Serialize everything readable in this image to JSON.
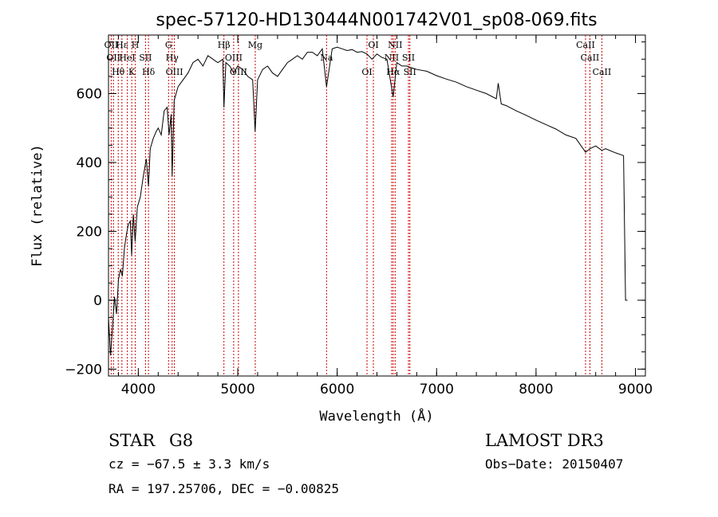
{
  "chart_data": {
    "type": "line",
    "title": "spec-57120-HD130444N001742V01_sp08-069.fits",
    "xlabel": "Wavelength (Å)",
    "ylabel": "Flux (relative)",
    "xlim": [
      3700,
      9100
    ],
    "ylim": [
      -220,
      770
    ],
    "x_ticks": [
      4000,
      5000,
      6000,
      7000,
      8000,
      9000
    ],
    "y_ticks": [
      -200,
      0,
      200,
      400,
      600
    ],
    "x_tick_labels": [
      "4000",
      "5000",
      "6000",
      "7000",
      "8000",
      "9000"
    ],
    "y_tick_labels": [
      "−200",
      "0",
      "200",
      "400",
      "600"
    ],
    "grid": false,
    "spectrum_color": "#000000",
    "line_marker_color": "#cc0000",
    "spectrum": {
      "x": [
        3700,
        3720,
        3740,
        3760,
        3780,
        3800,
        3820,
        3840,
        3860,
        3880,
        3900,
        3920,
        3933,
        3950,
        3968,
        3990,
        4020,
        4050,
        4080,
        4102,
        4120,
        4150,
        4180,
        4200,
        4230,
        4260,
        4290,
        4310,
        4330,
        4340,
        4360,
        4400,
        4450,
        4500,
        4550,
        4600,
        4650,
        4700,
        4750,
        4800,
        4850,
        4861,
        4880,
        4920,
        4960,
        5000,
        5050,
        5100,
        5150,
        5175,
        5200,
        5250,
        5300,
        5350,
        5400,
        5450,
        5500,
        5550,
        5600,
        5650,
        5700,
        5750,
        5800,
        5850,
        5893,
        5950,
        6000,
        6050,
        6100,
        6150,
        6200,
        6250,
        6300,
        6350,
        6400,
        6450,
        6500,
        6563,
        6600,
        6650,
        6700,
        6750,
        6800,
        6900,
        7000,
        7100,
        7200,
        7300,
        7400,
        7500,
        7600,
        7620,
        7650,
        7700,
        7800,
        7900,
        8000,
        8100,
        8200,
        8300,
        8400,
        8498,
        8542,
        8600,
        8662,
        8700,
        8800,
        8880,
        8900,
        8920
      ],
      "y": [
        -50,
        -160,
        -80,
        10,
        -40,
        60,
        90,
        70,
        150,
        190,
        220,
        230,
        130,
        250,
        170,
        270,
        300,
        360,
        410,
        330,
        440,
        470,
        490,
        500,
        480,
        550,
        560,
        480,
        540,
        360,
        580,
        620,
        640,
        660,
        690,
        700,
        680,
        710,
        700,
        690,
        700,
        560,
        690,
        680,
        660,
        680,
        670,
        650,
        640,
        490,
        640,
        670,
        680,
        660,
        650,
        670,
        690,
        700,
        710,
        700,
        720,
        720,
        710,
        730,
        620,
        730,
        735,
        730,
        725,
        728,
        720,
        722,
        715,
        700,
        715,
        705,
        700,
        590,
        690,
        680,
        680,
        675,
        670,
        665,
        652,
        642,
        633,
        620,
        610,
        600,
        585,
        630,
        570,
        565,
        550,
        537,
        523,
        510,
        497,
        480,
        470,
        430,
        440,
        448,
        435,
        440,
        428,
        420,
        0,
        0
      ]
    },
    "line_markers": [
      {
        "x": 3727,
        "labels": [
          "OII"
        ]
      },
      {
        "x": 3750,
        "labels": [
          "OII"
        ]
      },
      {
        "x": 3798,
        "labels": [
          "Hθ"
        ]
      },
      {
        "x": 3835,
        "labels": [
          "Hε"
        ]
      },
      {
        "x": 3889,
        "labels": [
          "HeI"
        ]
      },
      {
        "x": 3934,
        "labels": [
          "K"
        ]
      },
      {
        "x": 3969,
        "labels": [
          "H"
        ]
      },
      {
        "x": 4072,
        "labels": [
          "SII"
        ]
      },
      {
        "x": 4102,
        "labels": [
          "Hδ"
        ]
      },
      {
        "x": 4304,
        "labels": [
          "G"
        ]
      },
      {
        "x": 4340,
        "labels": [
          "Hγ"
        ]
      },
      {
        "x": 4363,
        "labels": [
          "OIII"
        ]
      },
      {
        "x": 4861,
        "labels": [
          "Hβ"
        ]
      },
      {
        "x": 4959,
        "labels": [
          "OIII"
        ]
      },
      {
        "x": 5007,
        "labels": [
          "OIII"
        ]
      },
      {
        "x": 5176,
        "labels": [
          "Mg"
        ]
      },
      {
        "x": 5893,
        "labels": [
          "Na"
        ]
      },
      {
        "x": 6300,
        "labels": [
          "OI"
        ]
      },
      {
        "x": 6364,
        "labels": [
          "OI"
        ]
      },
      {
        "x": 6548,
        "labels": [
          "NII"
        ]
      },
      {
        "x": 6563,
        "labels": [
          "Hα"
        ]
      },
      {
        "x": 6583,
        "labels": [
          "NII"
        ]
      },
      {
        "x": 6717,
        "labels": [
          "SII"
        ]
      },
      {
        "x": 6731,
        "labels": [
          "SII"
        ]
      },
      {
        "x": 8498,
        "labels": [
          "CaII"
        ]
      },
      {
        "x": 8542,
        "labels": [
          "CaII"
        ]
      },
      {
        "x": 8662,
        "labels": [
          "CaII"
        ]
      }
    ]
  },
  "info": {
    "object_class": "STAR",
    "subclass": "G8",
    "survey": "LAMOST DR3",
    "redshift": "cz = −67.5 ± 3.3 km/s",
    "obs_date": "Obs−Date: 20150407",
    "coords": "RA = 197.25706, DEC =  −0.00825"
  }
}
